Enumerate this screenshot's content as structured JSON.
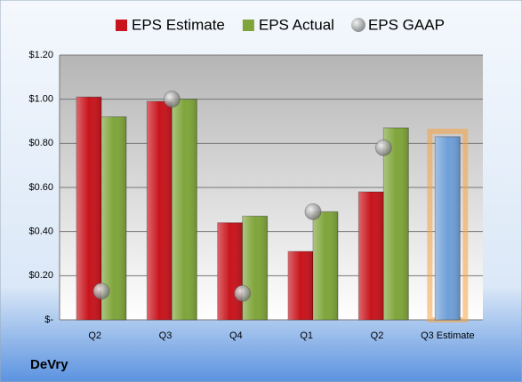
{
  "chart_data": {
    "type": "bar",
    "title": "DeVry",
    "categories": [
      "Q2",
      "Q3",
      "Q4",
      "Q1",
      "Q2",
      "Q3 Estimate"
    ],
    "series": [
      {
        "name": "EPS Estimate",
        "color": "#c8141c",
        "values": [
          1.01,
          0.99,
          0.44,
          0.31,
          0.58,
          0.83
        ],
        "colors": [
          "#c8141c",
          "#c8141c",
          "#c8141c",
          "#c8141c",
          "#c8141c",
          "#6f9fd8"
        ]
      },
      {
        "name": "EPS Actual",
        "color": "#7fa53a",
        "values": [
          0.92,
          1.0,
          0.47,
          0.49,
          0.87,
          null
        ]
      },
      {
        "name": "EPS GAAP",
        "color": "#a8a8a8",
        "marker": "circle",
        "values": [
          0.13,
          1.0,
          0.12,
          0.49,
          0.78,
          null
        ]
      }
    ],
    "ylim": [
      0,
      1.2
    ],
    "yticks": [
      {
        "value": 0,
        "label": "$-"
      },
      {
        "value": 0.2,
        "label": "$0.20"
      },
      {
        "value": 0.4,
        "label": "$0.40"
      },
      {
        "value": 0.6,
        "label": "$0.60"
      },
      {
        "value": 0.8,
        "label": "$0.80"
      },
      {
        "value": 1.0,
        "label": "$1.00"
      },
      {
        "value": 1.2,
        "label": "$1.20"
      }
    ],
    "grid": true,
    "legend": "top"
  }
}
